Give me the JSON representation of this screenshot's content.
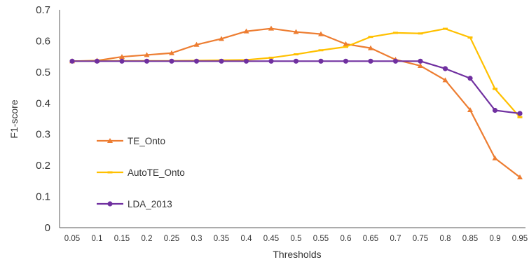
{
  "chart_data": {
    "type": "line",
    "title": "",
    "xlabel": "Thresholds",
    "ylabel": "F1-score",
    "ylim": [
      0,
      0.7
    ],
    "yticks": [
      "0",
      "0.1",
      "0.2",
      "0.3",
      "0.4",
      "0.5",
      "0.6",
      "0.7"
    ],
    "categories": [
      "0.05",
      "0.1",
      "0.15",
      "0.2",
      "0.25",
      "0.3",
      "0.35",
      "0.4",
      "0.45",
      "0.5",
      "0.55",
      "0.6",
      "0.65",
      "0.7",
      "0.75",
      "0.8",
      "0.85",
      "0.9",
      "0.95"
    ],
    "grid": false,
    "legend_position": "left-middle",
    "series": [
      {
        "name": "TE_Onto",
        "color": "#ED7D31",
        "marker": "triangle",
        "values": [
          0.535,
          0.537,
          0.549,
          0.555,
          0.561,
          0.588,
          0.607,
          0.631,
          0.64,
          0.629,
          0.622,
          0.59,
          0.577,
          0.54,
          0.52,
          0.474,
          0.378,
          0.223,
          0.162
        ]
      },
      {
        "name": "AutoTE_Onto",
        "color": "#FFC000",
        "marker": "dash",
        "values": [
          0.535,
          0.536,
          0.536,
          0.536,
          0.536,
          0.537,
          0.538,
          0.539,
          0.546,
          0.557,
          0.57,
          0.581,
          0.613,
          0.626,
          0.624,
          0.639,
          0.611,
          0.446,
          0.355
        ]
      },
      {
        "name": "LDA_2013",
        "color": "#7030A0",
        "marker": "circle",
        "values": [
          0.535,
          0.535,
          0.535,
          0.535,
          0.535,
          0.535,
          0.535,
          0.535,
          0.535,
          0.535,
          0.535,
          0.535,
          0.535,
          0.535,
          0.535,
          0.511,
          0.48,
          0.377,
          0.367
        ]
      }
    ]
  }
}
